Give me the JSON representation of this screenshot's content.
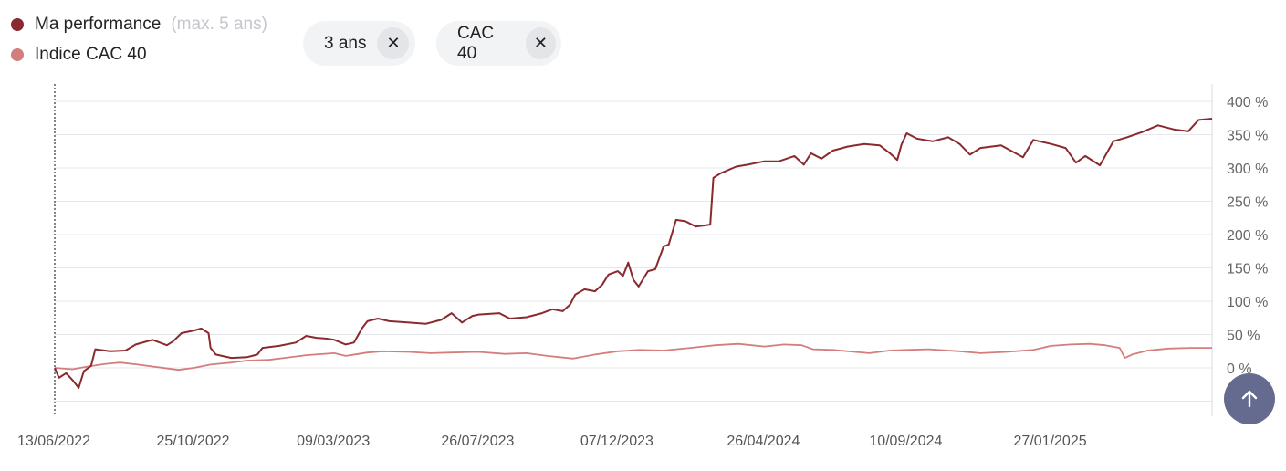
{
  "legend": {
    "items": [
      {
        "label": "Ma performance",
        "note": "(max. 5 ans)",
        "color": "#8b2a2e"
      },
      {
        "label": "Indice CAC 40",
        "note": "",
        "color": "#d47d7d"
      }
    ]
  },
  "filters": [
    {
      "label": "3 ans",
      "close": "✕"
    },
    {
      "label": "CAC 40",
      "close": "✕"
    }
  ],
  "fab": {
    "icon": "arrow-up-icon"
  },
  "chart_data": {
    "type": "line",
    "title": "",
    "xlabel": "",
    "ylabel": "",
    "ylim": [
      -50,
      400
    ],
    "yticks": [
      0,
      50,
      100,
      150,
      200,
      250,
      300,
      350,
      400
    ],
    "ytick_labels": [
      "0 %",
      "50 %",
      "100 %",
      "150 %",
      "200 %",
      "250 %",
      "300 %",
      "350 %",
      "400 %"
    ],
    "xlim": [
      "2022-06-13",
      "2025-07-01"
    ],
    "xticks": [
      "2022-06-13",
      "2022-10-25",
      "2023-03-09",
      "2023-07-26",
      "2023-12-07",
      "2024-04-26",
      "2024-09-10",
      "2025-01-27"
    ],
    "xtick_labels": [
      "13/06/2022",
      "25/10/2022",
      "09/03/2023",
      "26/07/2023",
      "07/12/2023",
      "26/04/2024",
      "10/09/2024",
      "27/01/2025"
    ],
    "grid": true,
    "series": [
      {
        "name": "Ma performance",
        "color": "#8b2a2e",
        "points": [
          [
            "2022-06-13",
            0
          ],
          [
            "2022-06-17",
            -15
          ],
          [
            "2022-06-24",
            -8
          ],
          [
            "2022-07-01",
            -20
          ],
          [
            "2022-07-06",
            -30
          ],
          [
            "2022-07-11",
            -5
          ],
          [
            "2022-07-18",
            3
          ],
          [
            "2022-07-22",
            28
          ],
          [
            "2022-08-05",
            25
          ],
          [
            "2022-08-20",
            26
          ],
          [
            "2022-08-30",
            35
          ],
          [
            "2022-09-15",
            42
          ],
          [
            "2022-09-29",
            34
          ],
          [
            "2022-10-05",
            40
          ],
          [
            "2022-10-13",
            52
          ],
          [
            "2022-10-25",
            56
          ],
          [
            "2022-11-01",
            59
          ],
          [
            "2022-11-08",
            52
          ],
          [
            "2022-11-10",
            30
          ],
          [
            "2022-11-15",
            20
          ],
          [
            "2022-11-30",
            15
          ],
          [
            "2022-12-15",
            16
          ],
          [
            "2022-12-25",
            20
          ],
          [
            "2022-12-30",
            30
          ],
          [
            "2023-01-15",
            33
          ],
          [
            "2023-01-31",
            38
          ],
          [
            "2023-02-10",
            48
          ],
          [
            "2023-02-20",
            45
          ],
          [
            "2023-03-01",
            44
          ],
          [
            "2023-03-09",
            42
          ],
          [
            "2023-03-20",
            35
          ],
          [
            "2023-03-28",
            38
          ],
          [
            "2023-04-05",
            60
          ],
          [
            "2023-04-10",
            70
          ],
          [
            "2023-04-20",
            74
          ],
          [
            "2023-05-01",
            70
          ],
          [
            "2023-05-20",
            68
          ],
          [
            "2023-06-05",
            66
          ],
          [
            "2023-06-20",
            72
          ],
          [
            "2023-06-30",
            82
          ],
          [
            "2023-07-10",
            68
          ],
          [
            "2023-07-20",
            78
          ],
          [
            "2023-07-26",
            80
          ],
          [
            "2023-08-15",
            82
          ],
          [
            "2023-08-25",
            74
          ],
          [
            "2023-09-10",
            76
          ],
          [
            "2023-09-25",
            82
          ],
          [
            "2023-10-05",
            88
          ],
          [
            "2023-10-15",
            85
          ],
          [
            "2023-10-22",
            95
          ],
          [
            "2023-10-27",
            110
          ],
          [
            "2023-11-05",
            118
          ],
          [
            "2023-11-15",
            115
          ],
          [
            "2023-11-22",
            125
          ],
          [
            "2023-11-28",
            140
          ],
          [
            "2023-12-07",
            145
          ],
          [
            "2023-12-12",
            138
          ],
          [
            "2023-12-17",
            158
          ],
          [
            "2023-12-22",
            132
          ],
          [
            "2023-12-27",
            122
          ],
          [
            "2024-01-05",
            145
          ],
          [
            "2024-01-12",
            148
          ],
          [
            "2024-01-20",
            182
          ],
          [
            "2024-01-25",
            185
          ],
          [
            "2024-02-01",
            222
          ],
          [
            "2024-02-10",
            220
          ],
          [
            "2024-02-20",
            212
          ],
          [
            "2024-03-05",
            215
          ],
          [
            "2024-03-08",
            285
          ],
          [
            "2024-03-15",
            292
          ],
          [
            "2024-03-30",
            302
          ],
          [
            "2024-04-10",
            305
          ],
          [
            "2024-04-26",
            310
          ],
          [
            "2024-05-10",
            310
          ],
          [
            "2024-05-25",
            318
          ],
          [
            "2024-06-03",
            305
          ],
          [
            "2024-06-10",
            322
          ],
          [
            "2024-06-20",
            314
          ],
          [
            "2024-07-01",
            326
          ],
          [
            "2024-07-15",
            332
          ],
          [
            "2024-07-31",
            336
          ],
          [
            "2024-08-15",
            334
          ],
          [
            "2024-08-25",
            322
          ],
          [
            "2024-09-01",
            312
          ],
          [
            "2024-09-05",
            335
          ],
          [
            "2024-09-10",
            352
          ],
          [
            "2024-09-20",
            344
          ],
          [
            "2024-10-05",
            340
          ],
          [
            "2024-10-20",
            346
          ],
          [
            "2024-10-31",
            336
          ],
          [
            "2024-11-10",
            320
          ],
          [
            "2024-11-20",
            330
          ],
          [
            "2024-12-10",
            334
          ],
          [
            "2024-12-31",
            316
          ],
          [
            "2025-01-10",
            342
          ],
          [
            "2025-01-27",
            336
          ],
          [
            "2025-02-10",
            330
          ],
          [
            "2025-02-20",
            308
          ],
          [
            "2025-03-01",
            318
          ],
          [
            "2025-03-15",
            304
          ],
          [
            "2025-03-28",
            340
          ],
          [
            "2025-04-10",
            346
          ],
          [
            "2025-04-25",
            354
          ],
          [
            "2025-05-10",
            364
          ],
          [
            "2025-05-25",
            358
          ],
          [
            "2025-06-08",
            355
          ],
          [
            "2025-06-18",
            372
          ],
          [
            "2025-07-01",
            374
          ]
        ]
      },
      {
        "name": "Indice CAC 40",
        "color": "#d47d7d",
        "points": [
          [
            "2022-06-13",
            0
          ],
          [
            "2022-06-30",
            -2
          ],
          [
            "2022-07-15",
            2
          ],
          [
            "2022-08-01",
            6
          ],
          [
            "2022-08-15",
            8
          ],
          [
            "2022-09-01",
            5
          ],
          [
            "2022-09-15",
            2
          ],
          [
            "2022-09-30",
            -1
          ],
          [
            "2022-10-10",
            -3
          ],
          [
            "2022-10-25",
            0
          ],
          [
            "2022-11-10",
            5
          ],
          [
            "2022-11-30",
            8
          ],
          [
            "2022-12-15",
            11
          ],
          [
            "2023-01-05",
            12
          ],
          [
            "2023-01-20",
            15
          ],
          [
            "2023-02-10",
            19
          ],
          [
            "2023-03-09",
            22
          ],
          [
            "2023-03-20",
            18
          ],
          [
            "2023-04-10",
            23
          ],
          [
            "2023-04-25",
            25
          ],
          [
            "2023-05-20",
            24
          ],
          [
            "2023-06-10",
            22
          ],
          [
            "2023-06-30",
            23
          ],
          [
            "2023-07-26",
            24
          ],
          [
            "2023-08-20",
            21
          ],
          [
            "2023-09-10",
            22
          ],
          [
            "2023-09-30",
            18
          ],
          [
            "2023-10-25",
            14
          ],
          [
            "2023-11-15",
            20
          ],
          [
            "2023-12-07",
            25
          ],
          [
            "2023-12-28",
            27
          ],
          [
            "2024-01-20",
            26
          ],
          [
            "2024-02-15",
            30
          ],
          [
            "2024-03-10",
            34
          ],
          [
            "2024-04-01",
            36
          ],
          [
            "2024-04-26",
            32
          ],
          [
            "2024-05-15",
            35
          ],
          [
            "2024-06-01",
            34
          ],
          [
            "2024-06-12",
            28
          ],
          [
            "2024-07-01",
            27
          ],
          [
            "2024-08-05",
            22
          ],
          [
            "2024-08-25",
            26
          ],
          [
            "2024-09-10",
            27
          ],
          [
            "2024-10-01",
            28
          ],
          [
            "2024-10-31",
            25
          ],
          [
            "2024-11-20",
            22
          ],
          [
            "2024-12-15",
            24
          ],
          [
            "2025-01-10",
            27
          ],
          [
            "2025-01-27",
            33
          ],
          [
            "2025-02-15",
            35
          ],
          [
            "2025-03-05",
            36
          ],
          [
            "2025-03-20",
            34
          ],
          [
            "2025-04-03",
            30
          ],
          [
            "2025-04-08",
            15
          ],
          [
            "2025-04-15",
            20
          ],
          [
            "2025-04-30",
            26
          ],
          [
            "2025-05-20",
            29
          ],
          [
            "2025-06-10",
            30
          ],
          [
            "2025-07-01",
            30
          ]
        ]
      }
    ]
  }
}
